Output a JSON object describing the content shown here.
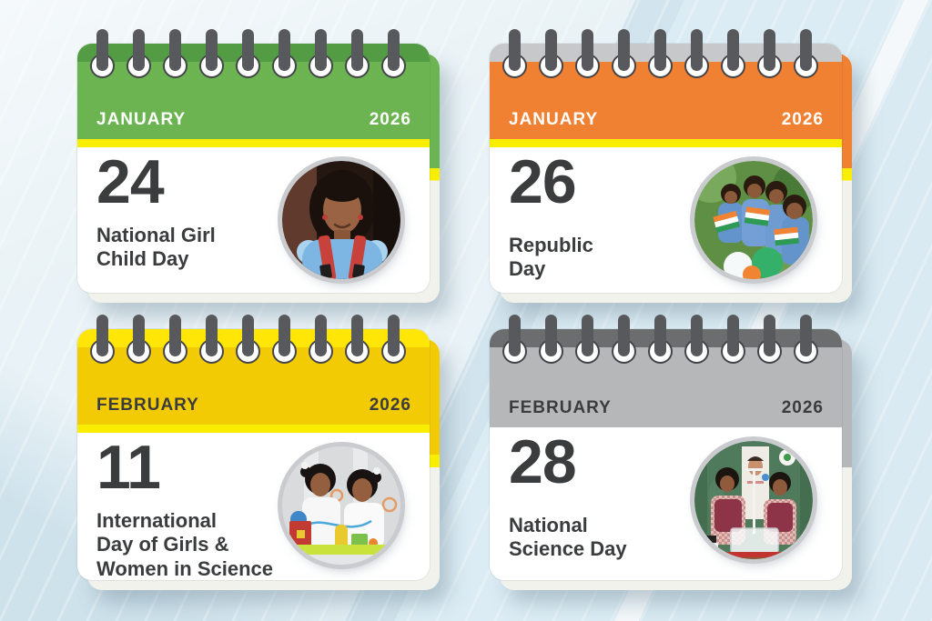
{
  "colors": {
    "background": "#E9F2F6",
    "text_dark": "#3B3C3E",
    "card_white": "#FFFFFF",
    "ring_gray": "#58595C",
    "photo_ring": "#C9CBCE"
  },
  "cards": [
    {
      "id": "january-24",
      "month": "JANUARY",
      "year": "2026",
      "day": "24",
      "title_lines": [
        "National Girl",
        "Child Day"
      ],
      "photo": "girl-child-portrait",
      "colors": {
        "strip": "#549C44",
        "header": "#6CB351",
        "stripe": "#F9ED00",
        "header_text": "#FFFFFF"
      }
    },
    {
      "id": "january-26",
      "month": "JANUARY",
      "year": "2026",
      "day": "26",
      "title_lines": [
        "Republic",
        "Day"
      ],
      "photo": "children-with-indian-flags",
      "colors": {
        "strip": "#C6C8CA",
        "header": "#F08032",
        "stripe": "#F9ED00",
        "header_text": "#FFFFFF"
      }
    },
    {
      "id": "february-11",
      "month": "FEBRUARY",
      "year": "2026",
      "day": "11",
      "title_lines": [
        "International",
        "Day of Girls &",
        "Women in Science"
      ],
      "photo": "girls-science-project",
      "colors": {
        "strip": "#FFE607",
        "header": "#F3CB04",
        "stripe": "#F9ED00",
        "header_text": "#3B3C3E"
      }
    },
    {
      "id": "february-28",
      "month": "FEBRUARY",
      "year": "2026",
      "day": "28",
      "title_lines": [
        "National",
        "Science Day"
      ],
      "photo": "classroom-science-experiment",
      "colors": {
        "strip": "#6B6D6F",
        "header": "#B5B7B9",
        "stripe": "#B5B7B9",
        "header_text": "#3B3C3E"
      }
    }
  ]
}
